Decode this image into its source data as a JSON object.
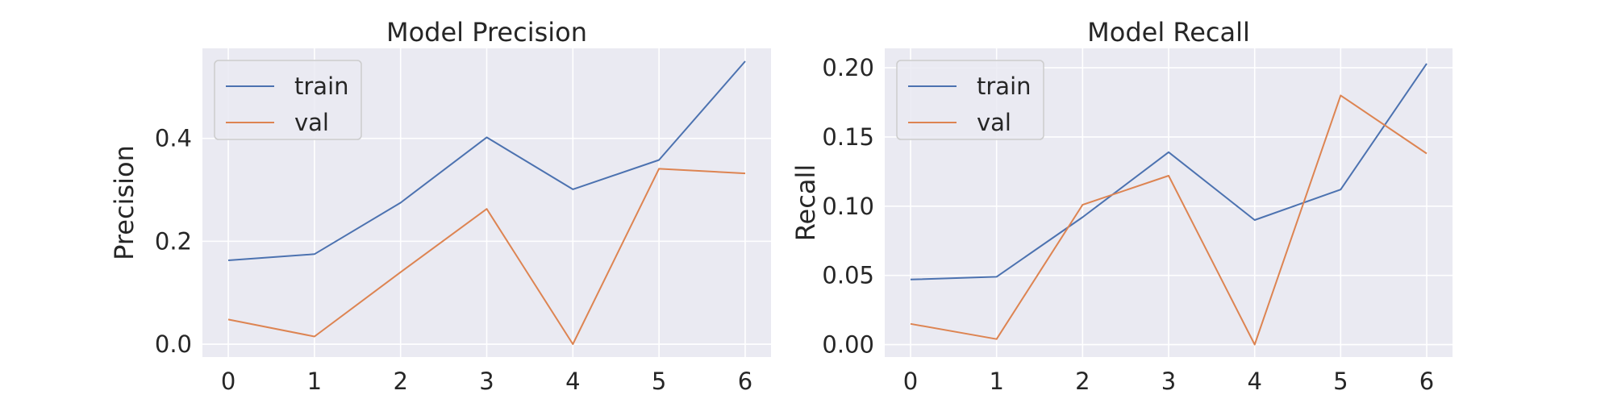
{
  "chart_data": [
    {
      "type": "line",
      "title": "Model Precision",
      "xlabel": "",
      "ylabel": "Precision",
      "x": [
        0,
        1,
        2,
        3,
        4,
        5,
        6
      ],
      "xlim": [
        -0.3,
        6.3
      ],
      "ylim": [
        -0.025,
        0.575
      ],
      "yticks": [
        0.0,
        0.2,
        0.4
      ],
      "yticks_labels": [
        "0.0",
        "0.2",
        "0.4"
      ],
      "xticks_labels": [
        "0",
        "1",
        "2",
        "3",
        "4",
        "5",
        "6"
      ],
      "grid": true,
      "legend": "upper-left",
      "series": [
        {
          "name": "train",
          "color": "#4c72b0",
          "values": [
            0.163,
            0.175,
            0.275,
            0.402,
            0.301,
            0.358,
            0.55
          ]
        },
        {
          "name": "val",
          "color": "#dd8452",
          "values": [
            0.048,
            0.015,
            0.14,
            0.263,
            0.0,
            0.341,
            0.332
          ]
        }
      ]
    },
    {
      "type": "line",
      "title": "Model Recall",
      "xlabel": "",
      "ylabel": "Recall",
      "x": [
        0,
        1,
        2,
        3,
        4,
        5,
        6
      ],
      "xlim": [
        -0.3,
        6.3
      ],
      "ylim": [
        -0.009,
        0.214
      ],
      "yticks": [
        0.0,
        0.05,
        0.1,
        0.15,
        0.2
      ],
      "yticks_labels": [
        "0.00",
        "0.05",
        "0.10",
        "0.15",
        "0.20"
      ],
      "xticks_labels": [
        "0",
        "1",
        "2",
        "3",
        "4",
        "5",
        "6"
      ],
      "grid": true,
      "legend": "upper-left",
      "series": [
        {
          "name": "train",
          "color": "#4c72b0",
          "values": [
            0.047,
            0.049,
            0.092,
            0.139,
            0.09,
            0.112,
            0.203
          ]
        },
        {
          "name": "val",
          "color": "#dd8452",
          "values": [
            0.015,
            0.004,
            0.101,
            0.122,
            0.0,
            0.18,
            0.138
          ]
        }
      ]
    }
  ]
}
